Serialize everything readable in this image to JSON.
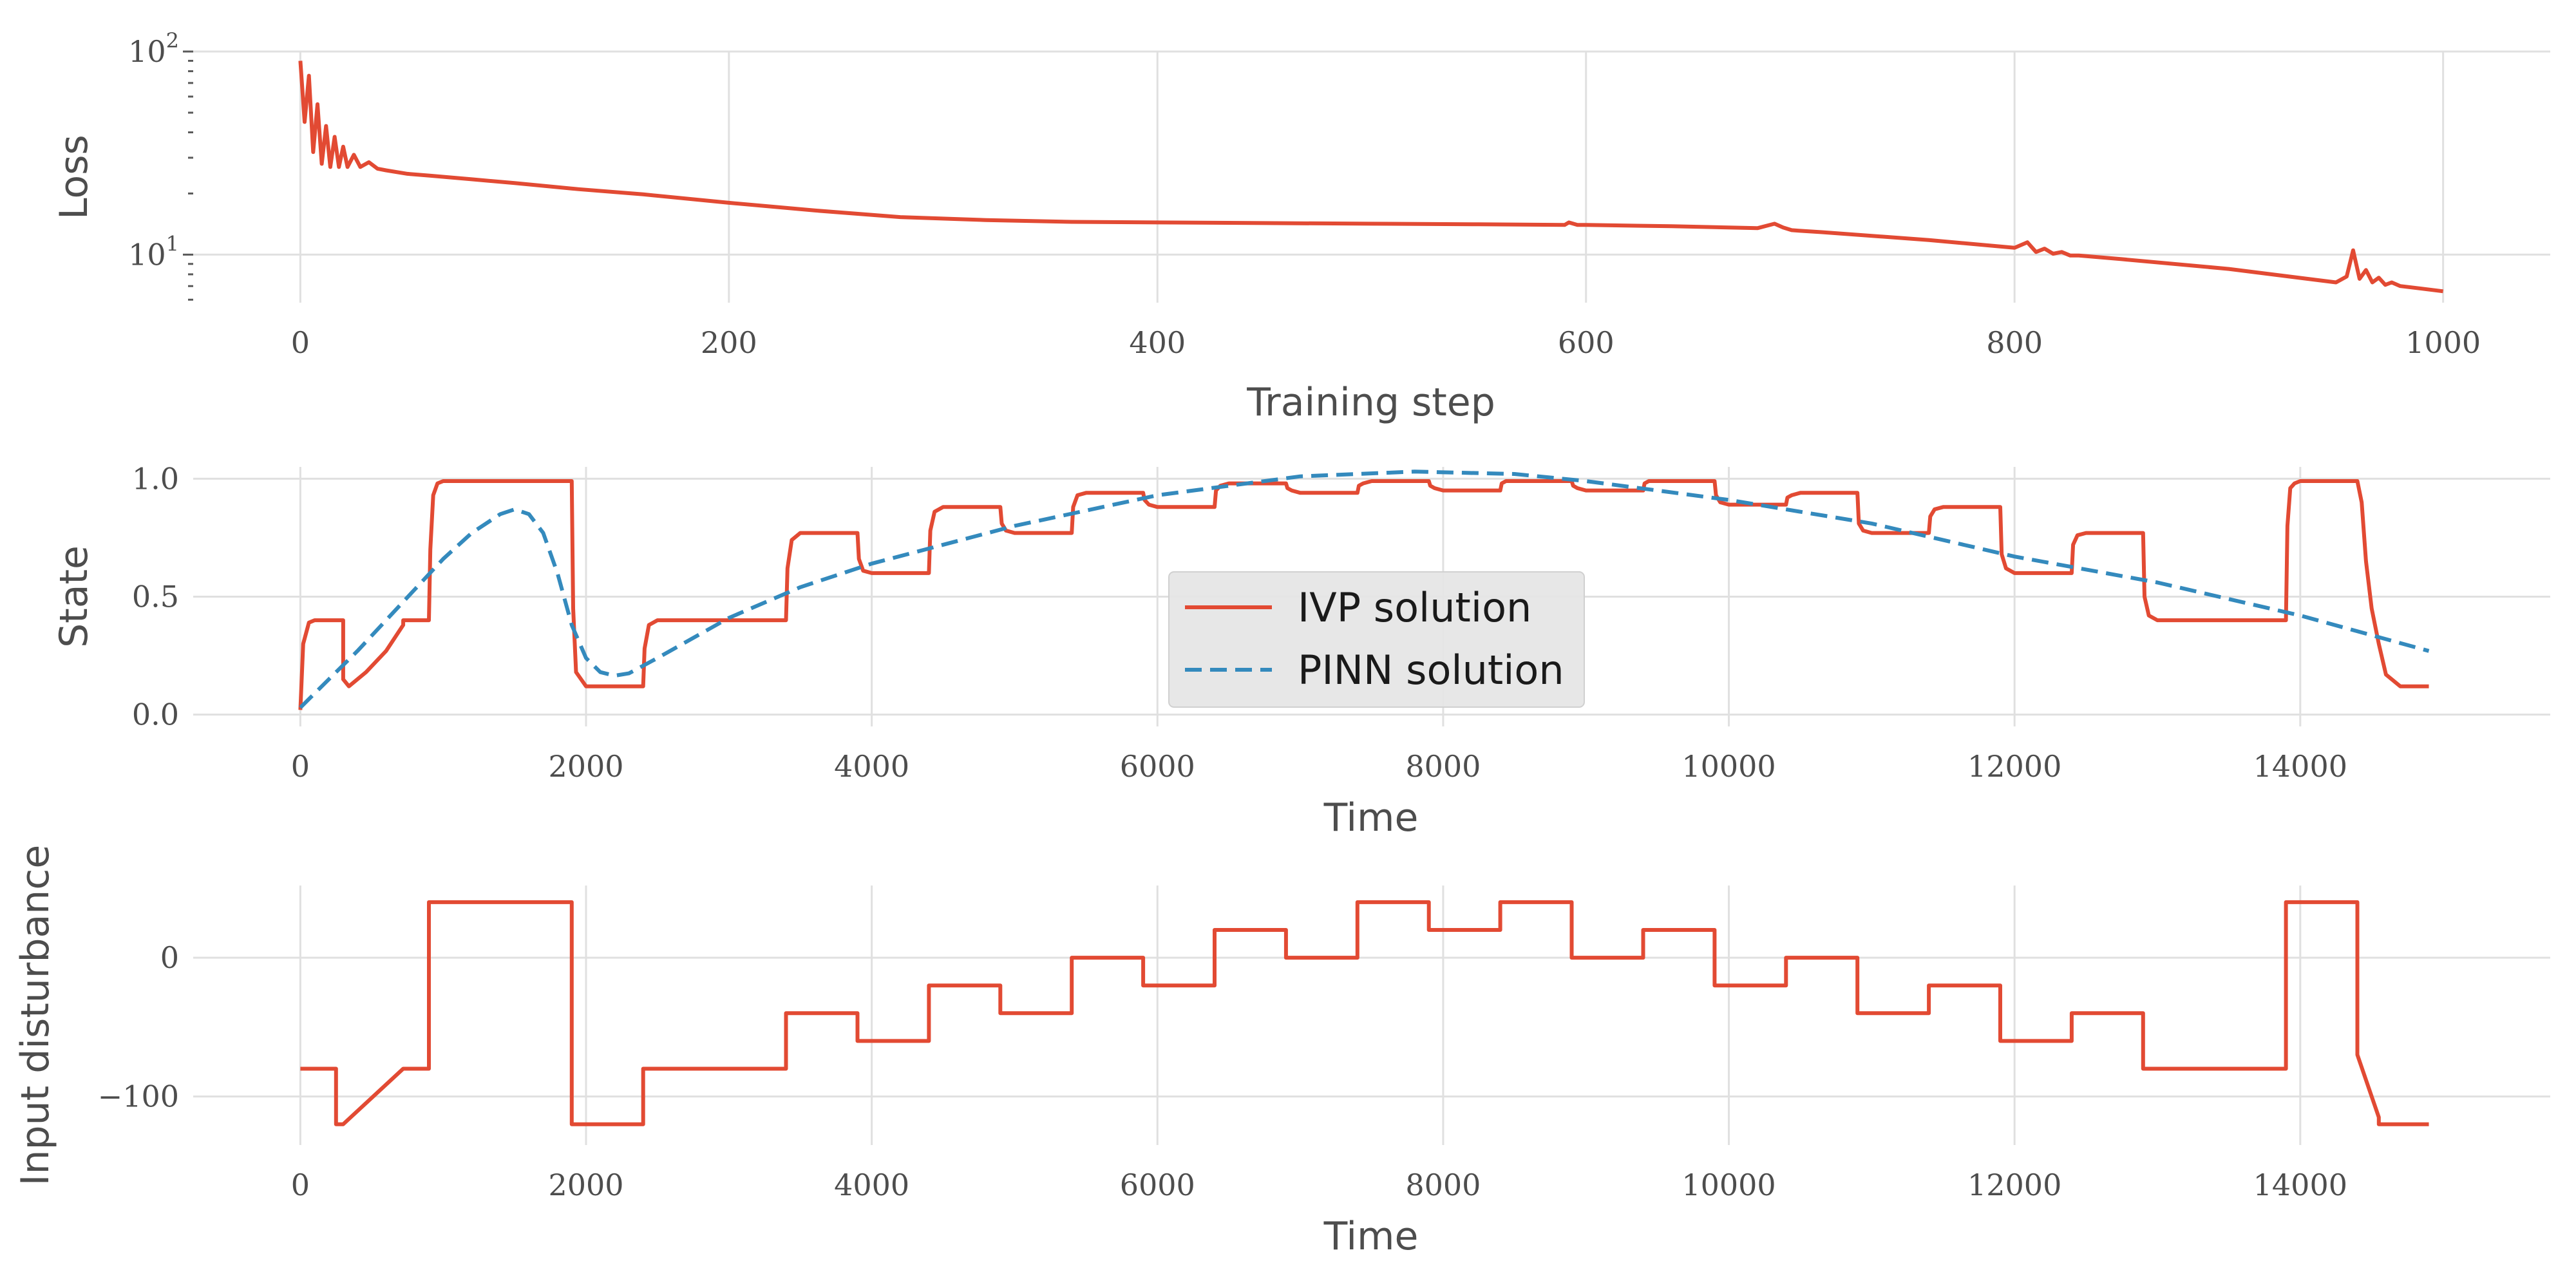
{
  "colors": {
    "ivp": "#E24A33",
    "pinn": "#348ABD",
    "legend_bg": "#E5E5E5"
  },
  "chart_data": [
    {
      "type": "line",
      "xlabel": "Training step",
      "ylabel": "Loss",
      "yscale": "log",
      "xlim": [
        -50,
        1050
      ],
      "ylim": [
        5.8,
        100
      ],
      "xticks": [
        0,
        200,
        400,
        600,
        800,
        1000
      ],
      "xtick_labels": [
        "0",
        "200",
        "400",
        "600",
        "800",
        "1000"
      ],
      "yticks": [
        10,
        100
      ],
      "ytick_base": "10",
      "ytick_exps": [
        "1",
        "2"
      ],
      "grid": true,
      "series": [
        {
          "color": "#E24A33",
          "x": [
            0,
            2,
            4,
            6,
            8,
            10,
            12,
            14,
            16,
            18,
            20,
            22,
            25,
            28,
            32,
            36,
            40,
            50,
            60,
            80,
            100,
            130,
            160,
            200,
            240,
            280,
            320,
            360,
            400,
            450,
            500,
            550,
            590,
            592,
            596,
            600,
            640,
            680,
            688,
            692,
            696,
            700,
            710,
            760,
            800,
            806,
            810,
            814,
            818,
            822,
            826,
            830,
            850,
            900,
            950,
            955,
            958,
            961,
            964,
            967,
            970,
            973,
            976,
            980,
            990,
            1000
          ],
          "y": [
            90,
            45,
            76,
            32,
            55,
            28,
            43,
            27,
            38,
            27,
            34,
            27,
            31,
            27,
            28.5,
            26.5,
            26,
            25,
            24.5,
            23.5,
            22.5,
            21,
            19.8,
            18,
            16.5,
            15.3,
            14.8,
            14.5,
            14.4,
            14.3,
            14.2,
            14.1,
            14.0,
            14.4,
            14.0,
            14.0,
            13.8,
            13.5,
            14.2,
            13.6,
            13.2,
            13.1,
            12.9,
            11.8,
            10.8,
            11.5,
            10.3,
            10.7,
            10.1,
            10.3,
            9.9,
            9.9,
            9.5,
            8.5,
            7.3,
            7.8,
            10.5,
            7.6,
            8.4,
            7.3,
            7.7,
            7.1,
            7.3,
            7.0,
            6.8,
            6.6
          ]
        }
      ]
    },
    {
      "type": "line",
      "xlabel": "Time",
      "ylabel": "State",
      "xlim": [
        -750,
        15750
      ],
      "ylim": [
        -0.05,
        1.05
      ],
      "xticks": [
        0,
        2000,
        4000,
        6000,
        8000,
        10000,
        12000,
        14000
      ],
      "xtick_labels": [
        "0",
        "2000",
        "4000",
        "6000",
        "8000",
        "10000",
        "12000",
        "14000"
      ],
      "yticks": [
        0,
        0.5,
        1.0
      ],
      "ytick_labels": [
        "0.0",
        "0.5",
        "1.0"
      ],
      "grid": true,
      "legend_position": "center",
      "series": [
        {
          "name": "IVP solution",
          "color": "#E24A33",
          "style": "solid",
          "x": [
            0,
            20,
            60,
            100,
            300,
            300,
            340,
            460,
            600,
            720,
            720,
            900,
            910,
            930,
            960,
            1000,
            1900,
            1910,
            1930,
            2000,
            2400,
            2410,
            2440,
            2500,
            3400,
            3410,
            3440,
            3500,
            3900,
            3910,
            3940,
            4000,
            4400,
            4410,
            4440,
            4500,
            4900,
            4910,
            4940,
            5000,
            5400,
            5410,
            5440,
            5500,
            5900,
            5910,
            5940,
            6000,
            6400,
            6410,
            6440,
            6500,
            6900,
            6910,
            6940,
            7000,
            7400,
            7410,
            7440,
            7500,
            7900,
            7910,
            7940,
            8000,
            8400,
            8410,
            8440,
            8500,
            8900,
            8910,
            8940,
            9000,
            9400,
            9410,
            9440,
            9500,
            9900,
            9910,
            9940,
            10000,
            10400,
            10410,
            10440,
            10500,
            10900,
            10910,
            10940,
            11000,
            11400,
            11410,
            11440,
            11500,
            11900,
            11910,
            11940,
            12000,
            12400,
            12410,
            12440,
            12500,
            12900,
            12910,
            12940,
            13000,
            13900,
            13910,
            13930,
            13960,
            14000,
            14400,
            14430,
            14460,
            14500,
            14550,
            14600,
            14700,
            14900
          ],
          "y": [
            0.02,
            0.3,
            0.39,
            0.4,
            0.4,
            0.15,
            0.12,
            0.18,
            0.27,
            0.38,
            0.4,
            0.4,
            0.7,
            0.93,
            0.98,
            0.99,
            0.99,
            0.45,
            0.18,
            0.12,
            0.12,
            0.28,
            0.38,
            0.4,
            0.4,
            0.62,
            0.74,
            0.77,
            0.77,
            0.66,
            0.61,
            0.6,
            0.6,
            0.78,
            0.86,
            0.88,
            0.88,
            0.81,
            0.78,
            0.77,
            0.77,
            0.88,
            0.93,
            0.94,
            0.94,
            0.91,
            0.89,
            0.88,
            0.88,
            0.95,
            0.97,
            0.98,
            0.98,
            0.96,
            0.95,
            0.94,
            0.94,
            0.97,
            0.98,
            0.99,
            0.99,
            0.97,
            0.96,
            0.95,
            0.95,
            0.98,
            0.99,
            0.99,
            0.99,
            0.97,
            0.96,
            0.95,
            0.95,
            0.98,
            0.99,
            0.99,
            0.99,
            0.93,
            0.9,
            0.89,
            0.89,
            0.92,
            0.93,
            0.94,
            0.94,
            0.81,
            0.78,
            0.77,
            0.77,
            0.84,
            0.87,
            0.88,
            0.88,
            0.68,
            0.62,
            0.6,
            0.6,
            0.72,
            0.76,
            0.77,
            0.77,
            0.5,
            0.42,
            0.4,
            0.4,
            0.8,
            0.96,
            0.98,
            0.99,
            0.99,
            0.9,
            0.65,
            0.45,
            0.3,
            0.17,
            0.12,
            0.12
          ]
        },
        {
          "name": "PINN solution",
          "color": "#348ABD",
          "style": "dashed",
          "x": [
            0,
            200,
            400,
            600,
            800,
            1000,
            1200,
            1400,
            1500,
            1600,
            1700,
            1800,
            1900,
            2000,
            2100,
            2200,
            2300,
            2500,
            3000,
            3500,
            4000,
            5000,
            6000,
            7000,
            7800,
            8500,
            9000,
            10000,
            11000,
            12000,
            13000,
            14000,
            14900
          ],
          "y": [
            0.03,
            0.15,
            0.27,
            0.4,
            0.53,
            0.66,
            0.77,
            0.85,
            0.87,
            0.85,
            0.77,
            0.6,
            0.38,
            0.24,
            0.18,
            0.165,
            0.175,
            0.24,
            0.41,
            0.54,
            0.64,
            0.8,
            0.93,
            1.01,
            1.03,
            1.02,
            0.99,
            0.91,
            0.81,
            0.67,
            0.56,
            0.42,
            0.27
          ]
        }
      ]
    },
    {
      "type": "line",
      "xlabel": "Time",
      "ylabel": "Input disturbance",
      "xlim": [
        -750,
        15750
      ],
      "ylim": [
        -135,
        52
      ],
      "xticks": [
        0,
        2000,
        4000,
        6000,
        8000,
        10000,
        12000,
        14000
      ],
      "xtick_labels": [
        "0",
        "2000",
        "4000",
        "6000",
        "8000",
        "10000",
        "12000",
        "14000"
      ],
      "yticks": [
        0,
        -100
      ],
      "ytick_labels": [
        "0",
        "−100"
      ],
      "grid": true,
      "series": [
        {
          "color": "#E24A33",
          "x": [
            0,
            250,
            250,
            300,
            720,
            900,
            900,
            1900,
            1900,
            2400,
            2400,
            3400,
            3400,
            3900,
            3900,
            4400,
            4400,
            4900,
            4900,
            5400,
            5400,
            5900,
            5900,
            6400,
            6400,
            6900,
            6900,
            7400,
            7400,
            7900,
            7900,
            8400,
            8400,
            8900,
            8900,
            9400,
            9400,
            9900,
            9900,
            10400,
            10400,
            10900,
            10900,
            11400,
            11400,
            11900,
            11900,
            12400,
            12400,
            12900,
            12900,
            13900,
            13900,
            14400,
            14400,
            14550,
            14550,
            14900
          ],
          "y": [
            -80,
            -80,
            -120,
            -120,
            -80,
            -80,
            40,
            40,
            -120,
            -120,
            -80,
            -80,
            -40,
            -40,
            -60,
            -60,
            -20,
            -20,
            -40,
            -40,
            0,
            0,
            -20,
            -20,
            20,
            20,
            0,
            0,
            40,
            40,
            20,
            20,
            40,
            40,
            0,
            0,
            20,
            20,
            -20,
            -20,
            0,
            0,
            -40,
            -40,
            -20,
            -20,
            -60,
            -60,
            -40,
            -40,
            -80,
            -80,
            40,
            40,
            -70,
            -115,
            -120,
            -120
          ]
        }
      ]
    }
  ]
}
